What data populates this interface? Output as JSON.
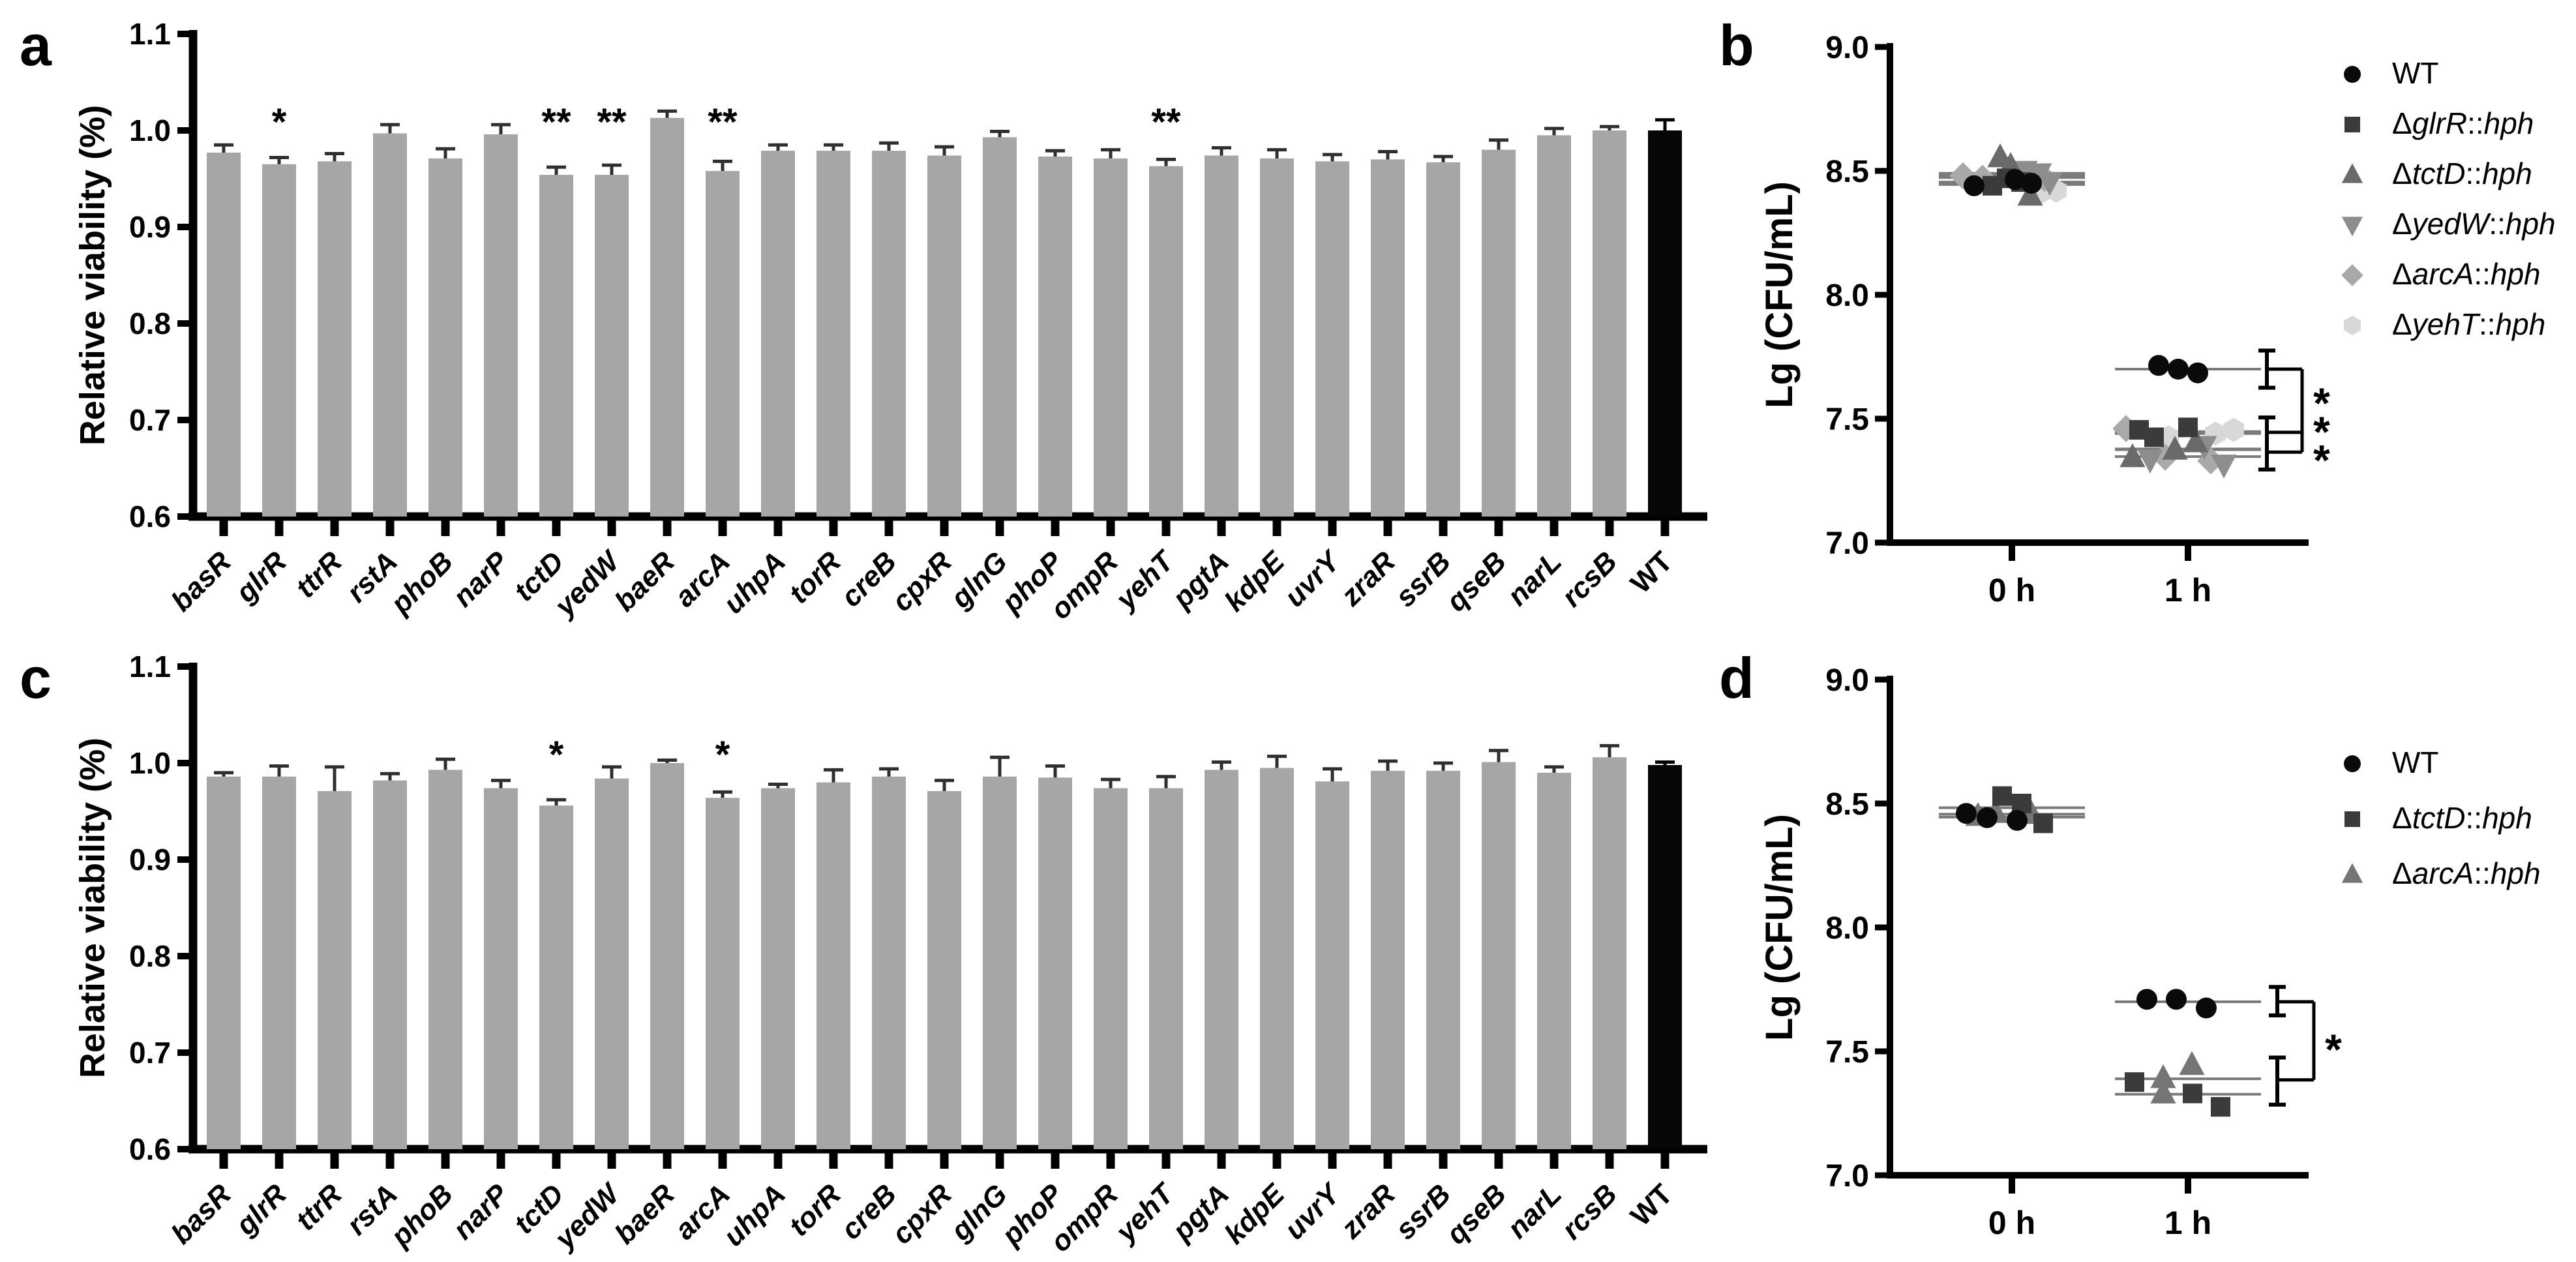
{
  "figure_background": "#ffffff",
  "colors": {
    "bar_gray": "#a6a6a6",
    "bar_black": "#060606",
    "error_bar": "#2f2f2f",
    "axis": "#000000",
    "mean_line": "#7a7a7a"
  },
  "chart_data": [
    {
      "id": "a",
      "panel_label": "a",
      "type": "bar",
      "ylabel": "Relative viability (%)",
      "ylim": [
        0.6,
        1.1
      ],
      "yticks": [
        0.6,
        0.7,
        0.8,
        0.9,
        1.0,
        1.1
      ],
      "grid": false,
      "significance_y": 1.01,
      "categories": [
        "basR",
        "glrR",
        "ttrR",
        "rstA",
        "phoB",
        "narP",
        "tctD",
        "yedW",
        "baeR",
        "arcA",
        "uhpA",
        "torR",
        "creB",
        "cpxR",
        "glnG",
        "phoP",
        "ompR",
        "yehT",
        "pgtA",
        "kdpE",
        "uvrY",
        "zraR",
        "ssrB",
        "qseB",
        "narL",
        "rcsB",
        "WT"
      ],
      "values": [
        0.977,
        0.965,
        0.968,
        0.997,
        0.971,
        0.996,
        0.954,
        0.954,
        1.013,
        0.958,
        0.979,
        0.979,
        0.979,
        0.974,
        0.993,
        0.973,
        0.971,
        0.963,
        0.974,
        0.971,
        0.968,
        0.97,
        0.967,
        0.98,
        0.995,
        1.0,
        1.0
      ],
      "errors": [
        0.008,
        0.007,
        0.008,
        0.009,
        0.01,
        0.01,
        0.008,
        0.01,
        0.007,
        0.01,
        0.006,
        0.006,
        0.008,
        0.009,
        0.006,
        0.006,
        0.009,
        0.007,
        0.008,
        0.009,
        0.007,
        0.008,
        0.006,
        0.01,
        0.007,
        0.004,
        0.011
      ],
      "significance": [
        "",
        "*",
        "",
        "",
        "",
        "",
        "**",
        "**",
        "",
        "**",
        "",
        "",
        "",
        "",
        "",
        "",
        "",
        "**",
        "",
        "",
        "",
        "",
        "",
        "",
        "",
        "",
        ""
      ]
    },
    {
      "id": "b",
      "panel_label": "b",
      "type": "scatter",
      "ylabel": "Lg (CFU/mL)",
      "ylim": [
        7.0,
        9.0
      ],
      "yticks": [
        7.0,
        7.5,
        8.0,
        8.5,
        9.0
      ],
      "xcategories": [
        "0 h",
        "1 h"
      ],
      "legend_position": "right",
      "series": [
        {
          "name": "WT",
          "marker": "circle",
          "color": "#0a0a0a",
          "legend_parts": [
            {
              "t": "WT",
              "i": false
            }
          ],
          "points_0h": [
            {
              "dx": -58,
              "y": 8.44
            },
            {
              "dx": 5,
              "y": 8.465
            },
            {
              "dx": 30,
              "y": 8.45
            }
          ],
          "points_1h": [
            {
              "dx": -45,
              "y": 7.715
            },
            {
              "dx": -15,
              "y": 7.7
            },
            {
              "dx": 15,
              "y": 7.685
            }
          ],
          "mean_0h": 8.452,
          "mean_1h": 7.7
        },
        {
          "name": "ΔglrR::hph",
          "marker": "square",
          "color": "#3b3b3b",
          "legend_parts": [
            {
              "t": "Δ",
              "i": false
            },
            {
              "t": "glrR",
              "i": true
            },
            {
              "t": "::",
              "i": false
            },
            {
              "t": "hph",
              "i": true
            }
          ],
          "points_0h": [
            {
              "dx": -30,
              "y": 8.44
            },
            {
              "dx": -8,
              "y": 8.47
            },
            {
              "dx": 14,
              "y": 8.455
            }
          ],
          "points_1h": [
            {
              "dx": -75,
              "y": 7.455
            },
            {
              "dx": -52,
              "y": 7.425
            },
            {
              "dx": 0,
              "y": 7.465
            }
          ],
          "mean_0h": 8.455,
          "mean_1h": 7.448
        },
        {
          "name": "ΔtctD::hph",
          "marker": "triangle-up",
          "color": "#6a6a6a",
          "legend_parts": [
            {
              "t": "Δ",
              "i": false
            },
            {
              "t": "tctD",
              "i": true
            },
            {
              "t": "::",
              "i": false
            },
            {
              "t": "hph",
              "i": true
            }
          ],
          "points_0h": [
            {
              "dx": -18,
              "y": 8.555
            },
            {
              "dx": -2,
              "y": 8.52
            },
            {
              "dx": 28,
              "y": 8.4
            }
          ],
          "points_1h": [
            {
              "dx": -85,
              "y": 7.345
            },
            {
              "dx": -20,
              "y": 7.375
            },
            {
              "dx": 12,
              "y": 7.405
            }
          ],
          "mean_0h": 8.49,
          "mean_1h": 7.375
        },
        {
          "name": "ΔyedW::hph",
          "marker": "triangle-down",
          "color": "#8d8d8d",
          "legend_parts": [
            {
              "t": "Δ",
              "i": false
            },
            {
              "t": "yedW",
              "i": true
            },
            {
              "t": "::",
              "i": false
            },
            {
              "t": "hph",
              "i": true
            }
          ],
          "points_0h": [
            {
              "dx": 20,
              "y": 8.5
            },
            {
              "dx": 42,
              "y": 8.49
            },
            {
              "dx": 58,
              "y": 8.455
            }
          ],
          "points_1h": [
            {
              "dx": -58,
              "y": 7.335
            },
            {
              "dx": 25,
              "y": 7.39
            },
            {
              "dx": 55,
              "y": 7.315
            }
          ],
          "mean_0h": 8.48,
          "mean_1h": 7.347
        },
        {
          "name": "ΔarcA::hph",
          "marker": "diamond",
          "color": "#a9a9a9",
          "legend_parts": [
            {
              "t": "Δ",
              "i": false
            },
            {
              "t": "arcA",
              "i": true
            },
            {
              "t": "::",
              "i": false
            },
            {
              "t": "hph",
              "i": true
            }
          ],
          "points_0h": [
            {
              "dx": -75,
              "y": 8.48
            },
            {
              "dx": -45,
              "y": 8.47
            },
            {
              "dx": 50,
              "y": 8.47
            }
          ],
          "points_1h": [
            {
              "dx": -95,
              "y": 7.46
            },
            {
              "dx": -35,
              "y": 7.345
            },
            {
              "dx": 35,
              "y": 7.33
            }
          ],
          "mean_0h": 8.473,
          "mean_1h": 7.378
        },
        {
          "name": "ΔyehT::hph",
          "marker": "hexagon",
          "color": "#d8d8d8",
          "legend_parts": [
            {
              "t": "Δ",
              "i": false
            },
            {
              "t": "yehT",
              "i": true
            },
            {
              "t": "::",
              "i": false
            },
            {
              "t": "hph",
              "i": true
            }
          ],
          "points_0h": [
            {
              "dx": 0,
              "y": 8.5
            },
            {
              "dx": 45,
              "y": 8.415
            },
            {
              "dx": 68,
              "y": 8.42
            }
          ],
          "points_1h": [
            {
              "dx": -30,
              "y": 7.425
            },
            {
              "dx": 42,
              "y": 7.44
            },
            {
              "dx": 70,
              "y": 7.455
            }
          ],
          "mean_0h": 8.445,
          "mean_1h": 7.44
        }
      ],
      "bracket": {
        "ibars": [
          {
            "top": 7.775,
            "bottom": 7.625
          },
          {
            "top": 7.505,
            "bottom": 7.295
          }
        ],
        "levels": [
          7.7,
          7.445,
          7.365
        ],
        "stars": [
          {
            "y": 7.56,
            "label": "*"
          },
          {
            "y": 7.445,
            "label": "*"
          },
          {
            "y": 7.33,
            "label": "*"
          }
        ]
      }
    },
    {
      "id": "c",
      "panel_label": "c",
      "type": "bar",
      "ylabel": "Relative viability (%)",
      "ylim": [
        0.6,
        1.1
      ],
      "yticks": [
        0.6,
        0.7,
        0.8,
        0.9,
        1.0,
        1.1
      ],
      "grid": false,
      "significance_y": 1.01,
      "categories": [
        "basR",
        "glrR",
        "ttrR",
        "rstA",
        "phoB",
        "narP",
        "tctD",
        "yedW",
        "baeR",
        "arcA",
        "uhpA",
        "torR",
        "creB",
        "cpxR",
        "glnG",
        "phoP",
        "ompR",
        "yehT",
        "pgtA",
        "kdpE",
        "uvrY",
        "zraR",
        "ssrB",
        "qseB",
        "narL",
        "rcsB",
        "WT"
      ],
      "values": [
        0.986,
        0.986,
        0.971,
        0.982,
        0.993,
        0.974,
        0.956,
        0.984,
        1.0,
        0.964,
        0.974,
        0.98,
        0.986,
        0.971,
        0.986,
        0.985,
        0.974,
        0.974,
        0.993,
        0.995,
        0.981,
        0.992,
        0.992,
        1.001,
        0.99,
        1.006,
        0.998
      ],
      "errors": [
        0.004,
        0.011,
        0.025,
        0.007,
        0.011,
        0.008,
        0.006,
        0.012,
        0.003,
        0.006,
        0.004,
        0.013,
        0.008,
        0.011,
        0.02,
        0.012,
        0.009,
        0.012,
        0.008,
        0.012,
        0.013,
        0.01,
        0.008,
        0.012,
        0.006,
        0.012,
        0.003
      ],
      "significance": [
        "",
        "",
        "",
        "",
        "",
        "",
        "*",
        "",
        "",
        "*",
        "",
        "",
        "",
        "",
        "",
        "",
        "",
        "",
        "",
        "",
        "",
        "",
        "",
        "",
        "",
        "",
        ""
      ]
    },
    {
      "id": "d",
      "panel_label": "d",
      "type": "scatter",
      "ylabel": "Lg (CFU/mL)",
      "ylim": [
        7.0,
        9.0
      ],
      "yticks": [
        7.0,
        7.5,
        8.0,
        8.5,
        9.0
      ],
      "xcategories": [
        "0 h",
        "1 h"
      ],
      "legend_position": "right",
      "series": [
        {
          "name": "WT",
          "marker": "circle",
          "color": "#0a0a0a",
          "legend_parts": [
            {
              "t": "WT",
              "i": false
            }
          ],
          "points_0h": [
            {
              "dx": -70,
              "y": 8.46
            },
            {
              "dx": -38,
              "y": 8.443
            },
            {
              "dx": 8,
              "y": 8.432
            }
          ],
          "points_1h": [
            {
              "dx": -63,
              "y": 7.71
            },
            {
              "dx": -18,
              "y": 7.71
            },
            {
              "dx": 28,
              "y": 7.675
            }
          ],
          "mean_0h": 8.445,
          "mean_1h": 7.7
        },
        {
          "name": "ΔtctD::hph",
          "marker": "square",
          "color": "#3b3b3b",
          "legend_parts": [
            {
              "t": "Δ",
              "i": false
            },
            {
              "t": "tctD",
              "i": true
            },
            {
              "t": "::",
              "i": false
            },
            {
              "t": "hph",
              "i": true
            }
          ],
          "points_0h": [
            {
              "dx": -15,
              "y": 8.53
            },
            {
              "dx": 15,
              "y": 8.5
            },
            {
              "dx": 48,
              "y": 8.42
            }
          ],
          "points_1h": [
            {
              "dx": -82,
              "y": 7.376
            },
            {
              "dx": 7,
              "y": 7.33
            },
            {
              "dx": 50,
              "y": 7.276
            }
          ],
          "mean_0h": 8.483,
          "mean_1h": 7.327
        },
        {
          "name": "ΔarcA::hph",
          "marker": "triangle-up",
          "color": "#757575",
          "legend_parts": [
            {
              "t": "Δ",
              "i": false
            },
            {
              "t": "arcA",
              "i": true
            },
            {
              "t": "::",
              "i": false
            },
            {
              "t": "hph",
              "i": true
            }
          ],
          "points_0h": [
            {
              "dx": -52,
              "y": 8.45
            },
            {
              "dx": -25,
              "y": 8.462
            },
            {
              "dx": 30,
              "y": 8.458
            }
          ],
          "points_1h": [
            {
              "dx": -38,
              "y": 7.392
            },
            {
              "dx": 6,
              "y": 7.445
            },
            {
              "dx": -38,
              "y": 7.33
            }
          ],
          "mean_0h": 8.457,
          "mean_1h": 7.389
        }
      ],
      "bracket": {
        "ibars": [
          {
            "top": 7.76,
            "bottom": 7.645
          },
          {
            "top": 7.475,
            "bottom": 7.285
          }
        ],
        "levels": [
          7.7,
          7.385
        ],
        "stars": [
          {
            "y": 7.505,
            "label": "*"
          }
        ]
      }
    }
  ]
}
